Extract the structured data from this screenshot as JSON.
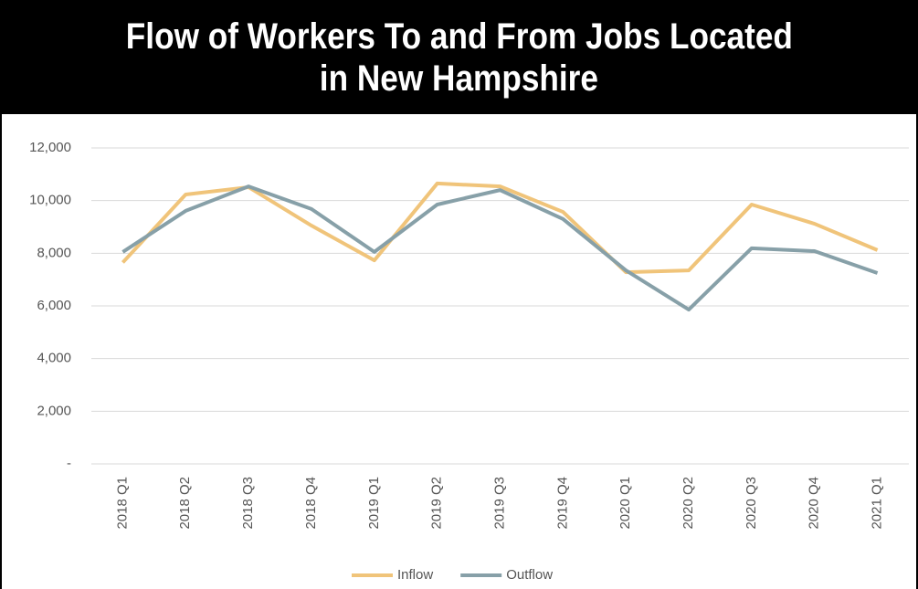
{
  "chart_data": {
    "type": "line",
    "title": [
      "Flow of Workers To and From Jobs Located",
      "in New Hampshire"
    ],
    "categories": [
      "2018 Q1",
      "2018 Q2",
      "2018 Q3",
      "2018 Q4",
      "2019 Q1",
      "2019 Q2",
      "2019 Q3",
      "2019 Q4",
      "2020 Q1",
      "2020 Q2",
      "2020 Q3",
      "2020 Q4",
      "2021 Q1"
    ],
    "series": [
      {
        "name": "Inflow",
        "color": "#f0c47a",
        "values": [
          7650,
          10230,
          10510,
          9050,
          7730,
          10650,
          10540,
          9570,
          7280,
          7350,
          9850,
          9120,
          8120
        ]
      },
      {
        "name": "Outflow",
        "color": "#87a0a8",
        "values": [
          8050,
          9610,
          10540,
          9680,
          8050,
          9850,
          10400,
          9300,
          7350,
          5860,
          8190,
          8080,
          7250
        ]
      }
    ],
    "ylim": [
      0,
      12000
    ],
    "yticks": [
      {
        "value": 0,
        "label": "-"
      },
      {
        "value": 2000,
        "label": "2,000"
      },
      {
        "value": 4000,
        "label": "4,000"
      },
      {
        "value": 6000,
        "label": "6,000"
      },
      {
        "value": 8000,
        "label": "8,000"
      },
      {
        "value": 10000,
        "label": "10,000"
      },
      {
        "value": 12000,
        "label": "12,000"
      }
    ],
    "grid": true,
    "legend": "bottom"
  }
}
